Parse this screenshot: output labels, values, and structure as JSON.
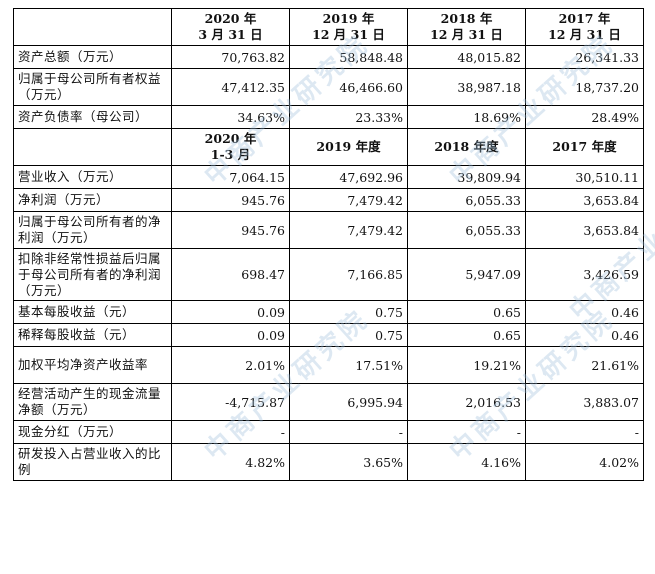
{
  "header1": {
    "label": "",
    "cols": [
      {
        "line1": "2020 年",
        "line2": "3 月 31 日"
      },
      {
        "line1": "2019 年",
        "line2": "12 月 31 日"
      },
      {
        "line1": "2018 年",
        "line2": "12 月 31 日"
      },
      {
        "line1": "2017 年",
        "line2": "12 月 31 日"
      }
    ]
  },
  "balance_rows": [
    {
      "label": "资产总额（万元）",
      "values": [
        "70,763.82",
        "58,848.48",
        "48,015.82",
        "26,341.33"
      ]
    },
    {
      "label": "归属于母公司所有者权益（万元）",
      "values": [
        "47,412.35",
        "46,466.60",
        "38,987.18",
        "18,737.20"
      ]
    },
    {
      "label": "资产负债率（母公司）",
      "values": [
        "34.63%",
        "23.33%",
        "18.69%",
        "28.49%"
      ]
    }
  ],
  "header2": {
    "label": "",
    "cols": [
      {
        "line1": "2020 年",
        "line2": "1-3 月"
      },
      {
        "line1": "2019 年度",
        "line2": ""
      },
      {
        "line1": "2018 年度",
        "line2": ""
      },
      {
        "line1": "2017 年度",
        "line2": ""
      }
    ]
  },
  "income_rows": [
    {
      "label": "营业收入（万元）",
      "values": [
        "7,064.15",
        "47,692.96",
        "39,809.94",
        "30,510.11"
      ]
    },
    {
      "label": "净利润（万元）",
      "values": [
        "945.76",
        "7,479.42",
        "6,055.33",
        "3,653.84"
      ]
    },
    {
      "label": "归属于母公司所有者的净利润（万元）",
      "values": [
        "945.76",
        "7,479.42",
        "6,055.33",
        "3,653.84"
      ]
    },
    {
      "label": "扣除非经常性损益后归属于母公司所有者的净利润（万元）",
      "values": [
        "698.47",
        "7,166.85",
        "5,947.09",
        "3,426.59"
      ]
    },
    {
      "label": "基本每股收益（元）",
      "values": [
        "0.09",
        "0.75",
        "0.65",
        "0.46"
      ]
    },
    {
      "label": "稀释每股收益（元）",
      "values": [
        "0.09",
        "0.75",
        "0.65",
        "0.46"
      ]
    },
    {
      "label": "加权平均净资产收益率",
      "values": [
        "2.01%",
        "17.51%",
        "19.21%",
        "21.61%"
      ]
    },
    {
      "label": "经营活动产生的现金流量净额（万元）",
      "values": [
        "-4,715.87",
        "6,995.94",
        "2,016.53",
        "3,883.07"
      ]
    },
    {
      "label": "现金分红（万元）",
      "values": [
        "-",
        "-",
        "-",
        "-"
      ]
    },
    {
      "label": "研发投入占营业收入的比例",
      "values": [
        "4.82%",
        "3.65%",
        "4.16%",
        "4.02%"
      ]
    }
  ],
  "watermark": {
    "text": "中商产业研究院",
    "color": "#9fc0dc"
  }
}
